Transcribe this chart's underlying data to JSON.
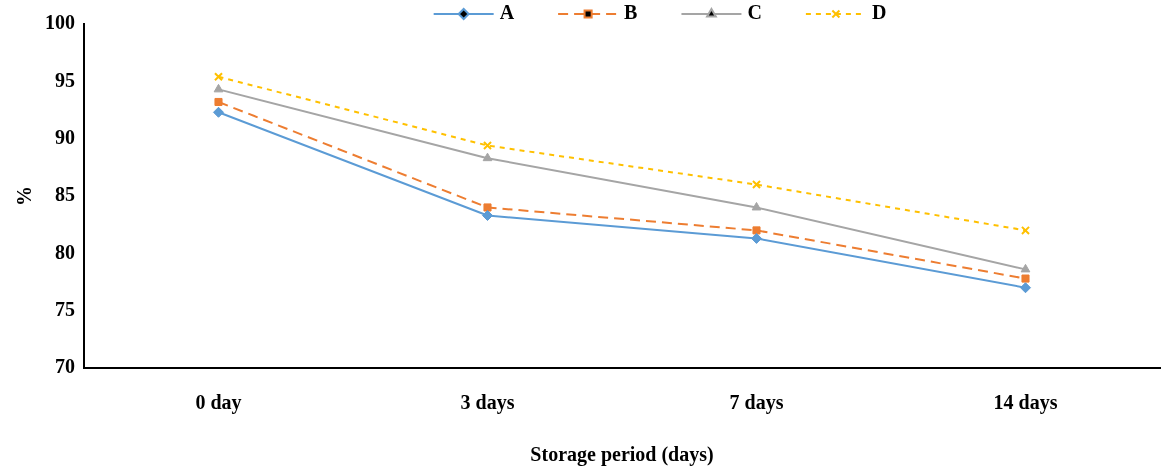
{
  "chart_data": {
    "type": "line",
    "xlabel": "Storage period (days)",
    "ylabel": "%",
    "categories": [
      "0 day",
      "3 days",
      "7 days",
      "14 days"
    ],
    "series": [
      {
        "name": "A",
        "color": "#5b9bd5",
        "values": [
          92.3,
          83.3,
          81.3,
          77.0
        ],
        "marker": "diamond",
        "line_style": "solid"
      },
      {
        "name": "B",
        "color": "#ed7d31",
        "values": [
          93.2,
          84.0,
          82.0,
          77.8
        ],
        "marker": "square",
        "line_style": "dashed"
      },
      {
        "name": "C",
        "color": "#a5a5a5",
        "values": [
          94.3,
          88.3,
          84.0,
          78.6
        ],
        "marker": "triangle",
        "line_style": "solid"
      },
      {
        "name": "D",
        "color": "#ffc000",
        "values": [
          95.4,
          89.4,
          86.0,
          82.0
        ],
        "marker": "cross",
        "line_style": "dotted"
      }
    ],
    "ylim": [
      70,
      100
    ],
    "yticks": [
      70,
      75,
      80,
      85,
      90,
      95,
      100
    ],
    "grid": false,
    "legend": "top"
  }
}
